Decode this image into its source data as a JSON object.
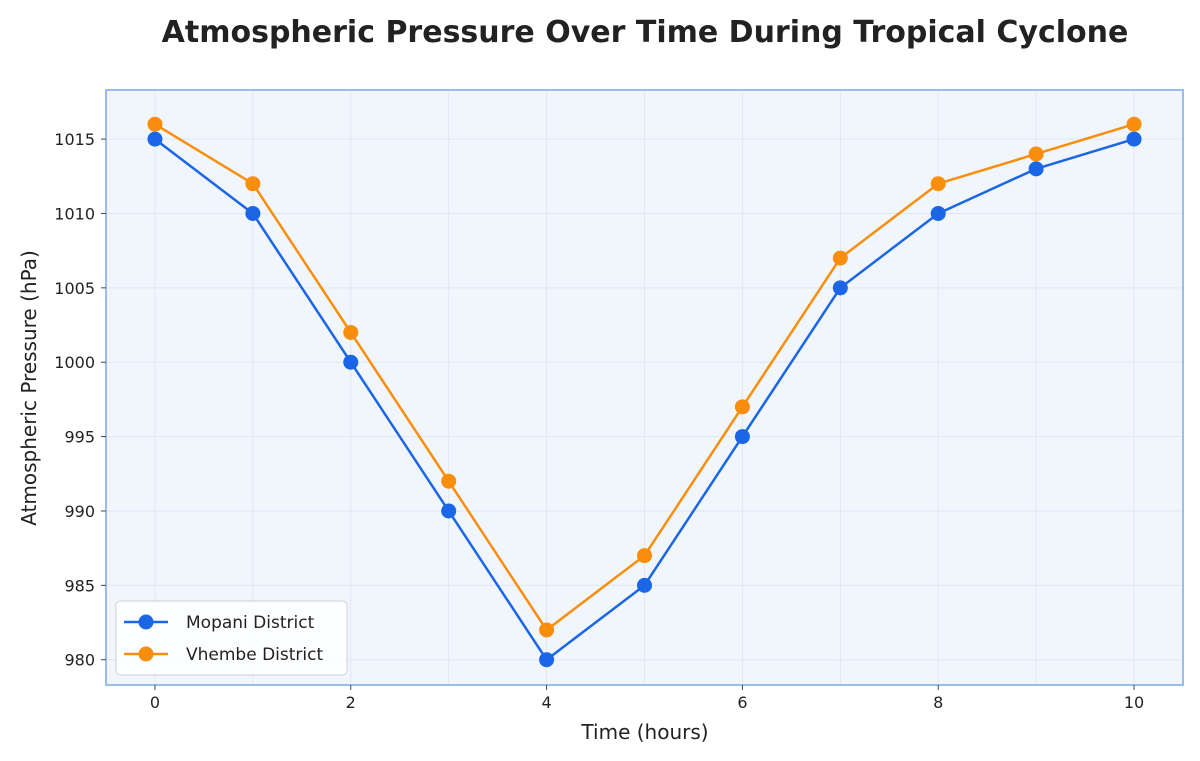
{
  "chart_data": {
    "type": "line",
    "title": "Atmospheric Pressure Over Time During Tropical Cyclone",
    "xlabel": "Time (hours)",
    "ylabel": "Atmospheric Pressure (hPa)",
    "x": [
      0,
      1,
      2,
      3,
      4,
      5,
      6,
      7,
      8,
      9,
      10
    ],
    "xlim": [
      -0.5,
      10.5
    ],
    "ylim": [
      978.3,
      1018.3
    ],
    "xticks": [
      0,
      2,
      4,
      6,
      8,
      10
    ],
    "yticks": [
      980,
      985,
      990,
      995,
      1000,
      1005,
      1010,
      1015
    ],
    "grid": true,
    "legend_position": "lower-left",
    "series": [
      {
        "name": "Mopani District",
        "color": "#1a66e6",
        "values": [
          1015,
          1010,
          1000,
          990,
          980,
          985,
          995,
          1005,
          1010,
          1013,
          1015
        ]
      },
      {
        "name": "Vhembe District",
        "color": "#f88e0c",
        "values": [
          1016,
          1012,
          1002,
          992,
          982,
          987,
          997,
          1007,
          1012,
          1014,
          1016
        ]
      }
    ],
    "colors": {
      "plot_background": "#f1f6fd",
      "plot_border": "#9bbdec",
      "grid": "#dfe7f5"
    }
  }
}
